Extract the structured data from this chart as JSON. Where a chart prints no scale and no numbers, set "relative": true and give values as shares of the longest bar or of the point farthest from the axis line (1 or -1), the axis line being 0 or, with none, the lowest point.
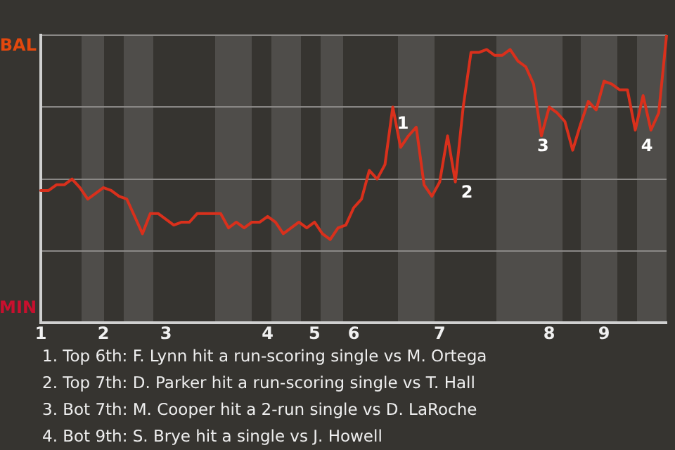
{
  "chart_data": {
    "type": "line",
    "relative": true,
    "categories": [
      "1",
      null,
      null,
      null,
      null,
      null,
      null,
      null,
      "2",
      null,
      null,
      null,
      null,
      null,
      null,
      null,
      "3",
      null,
      null,
      null,
      null,
      null,
      null,
      null,
      null,
      null,
      null,
      null,
      null,
      "4",
      null,
      null,
      null,
      null,
      null,
      "5",
      null,
      null,
      null,
      null,
      "6",
      null,
      null,
      null,
      null,
      null,
      null,
      null,
      null,
      null,
      null,
      "7",
      null,
      null,
      null,
      null,
      null,
      null,
      null,
      null,
      null,
      null,
      null,
      null,
      null,
      "8",
      null,
      null,
      null,
      null,
      null,
      null,
      "9",
      null,
      null,
      null,
      null,
      null,
      null,
      null,
      null
    ],
    "series": [
      {
        "color": "#d9301c",
        "values": [
          0.46,
          0.46,
          0.48,
          0.48,
          0.5,
          0.47,
          0.43,
          0.45,
          0.47,
          0.46,
          0.44,
          0.43,
          0.37,
          0.31,
          0.38,
          0.38,
          0.36,
          0.34,
          0.35,
          0.35,
          0.38,
          0.38,
          0.38,
          0.38,
          0.33,
          0.35,
          0.33,
          0.35,
          0.35,
          0.37,
          0.35,
          0.31,
          0.33,
          0.35,
          0.33,
          0.35,
          0.31,
          0.29,
          0.33,
          0.34,
          0.4,
          0.43,
          0.53,
          0.5,
          0.55,
          0.75,
          0.61,
          0.65,
          0.68,
          0.48,
          0.44,
          0.49,
          0.65,
          0.49,
          0.75,
          0.94,
          0.94,
          0.95,
          0.93,
          0.93,
          0.95,
          0.91,
          0.89,
          0.83,
          0.65,
          0.75,
          0.73,
          0.7,
          0.6,
          0.69,
          0.77,
          0.74,
          0.84,
          0.83,
          0.81,
          0.81,
          0.67,
          0.79,
          0.67,
          0.73,
          1.0
        ]
      }
    ],
    "grid": "y",
    "legend": false,
    "marker": "none",
    "line_style": "solid",
    "annotations": [
      "BAL",
      "MIN",
      "1",
      "2",
      "3",
      "4",
      "1. Top 6th: F. Lynn hit a run-scoring single vs M. Ortega",
      "2. Top 7th: D. Parker hit a run-scoring single vs T. Hall",
      "3. Bot 7th: M. Cooper hit a 2-run single vs D. LaRoche",
      "4. Bot 9th: S. Brye hit a single vs J. Howell"
    ]
  }
}
